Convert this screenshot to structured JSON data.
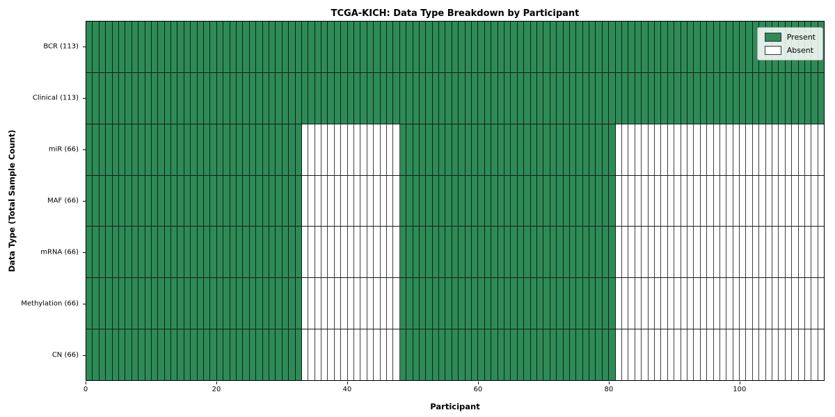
{
  "chart_data": {
    "type": "heatmap",
    "title": "TCGA-KICH: Data Type Breakdown by Participant",
    "xlabel": "Participant",
    "ylabel": "Data Type (Total Sample Count)",
    "n_participants": 113,
    "x_range": [
      0,
      113
    ],
    "x_ticks": [
      0,
      20,
      40,
      60,
      80,
      100
    ],
    "grid": true,
    "rows": [
      {
        "label": "BCR (113)",
        "total": 113,
        "present_ranges": [
          [
            0,
            113
          ]
        ]
      },
      {
        "label": "Clinical (113)",
        "total": 113,
        "present_ranges": [
          [
            0,
            113
          ]
        ]
      },
      {
        "label": "miR (66)",
        "total": 66,
        "present_ranges": [
          [
            0,
            33
          ],
          [
            48,
            81
          ]
        ]
      },
      {
        "label": "MAF (66)",
        "total": 66,
        "present_ranges": [
          [
            0,
            33
          ],
          [
            48,
            81
          ]
        ]
      },
      {
        "label": "mRNA (66)",
        "total": 66,
        "present_ranges": [
          [
            0,
            33
          ],
          [
            48,
            81
          ]
        ]
      },
      {
        "label": "Methylation (66)",
        "total": 66,
        "present_ranges": [
          [
            0,
            33
          ],
          [
            48,
            81
          ]
        ]
      },
      {
        "label": "CN (66)",
        "total": 66,
        "present_ranges": [
          [
            0,
            33
          ],
          [
            48,
            81
          ]
        ]
      }
    ],
    "legend": {
      "position": "top-right",
      "entries": [
        {
          "label": "Present",
          "color": "#2e8b57"
        },
        {
          "label": "Absent",
          "color": "#ffffff"
        }
      ]
    },
    "colors": {
      "present": "#2e8b57",
      "absent": "#ffffff",
      "grid": "#1a1a1a"
    }
  }
}
